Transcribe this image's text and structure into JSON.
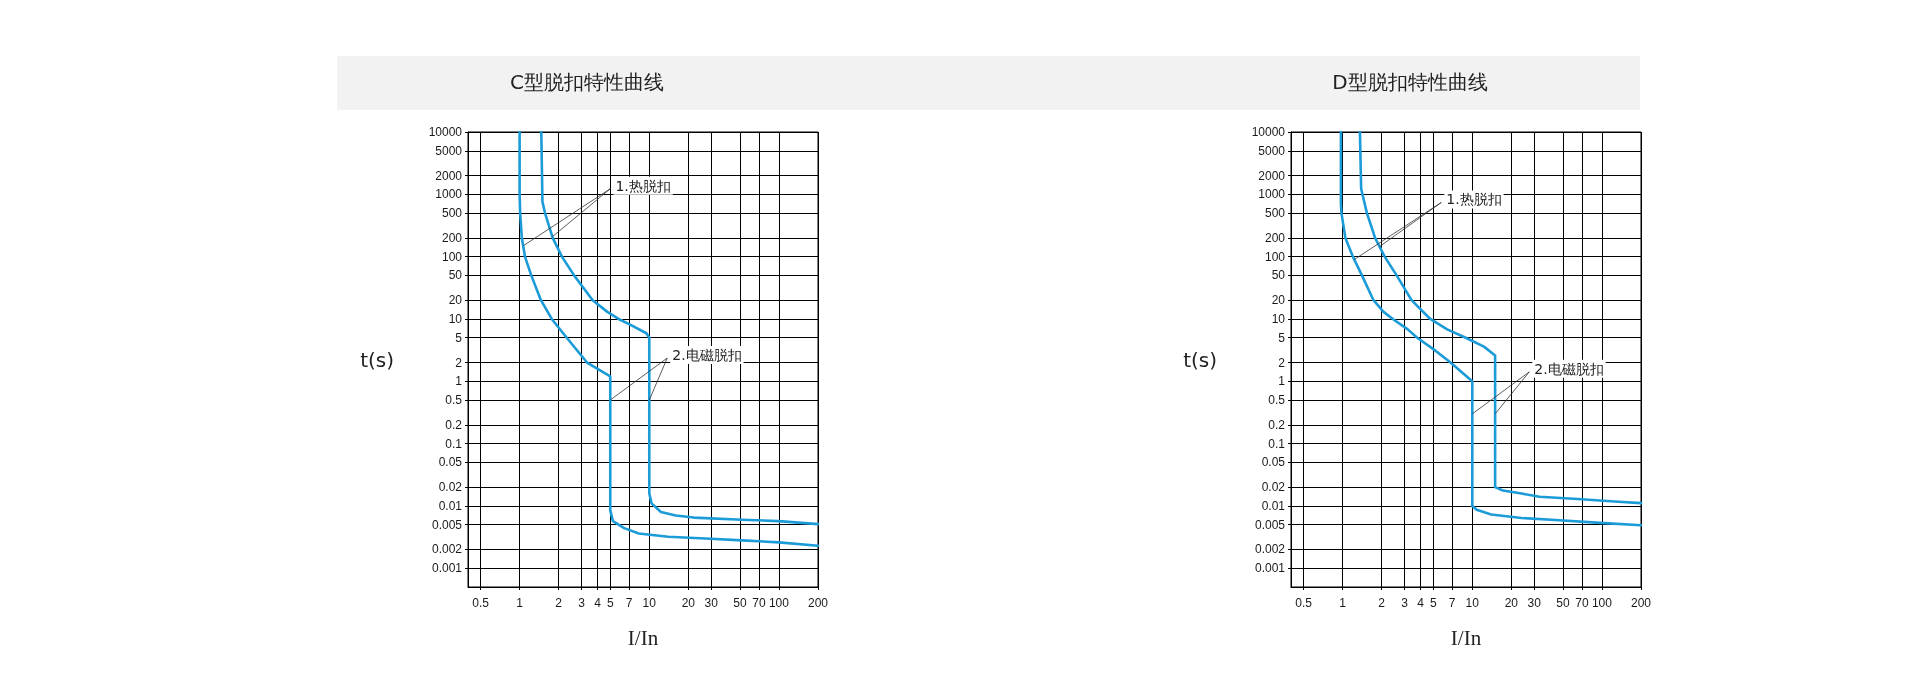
{
  "chart_data": [
    {
      "type": "line",
      "title": "C型脱扣特性曲线",
      "xlabel": "I/In",
      "ylabel": "t(s)",
      "log": "xy",
      "grid": true,
      "xlim": [
        0.4,
        200
      ],
      "ylim": [
        0.0005,
        10000
      ],
      "xticks": [
        0.5,
        1,
        2,
        3,
        4,
        5,
        7,
        10,
        20,
        30,
        50,
        70,
        100,
        200
      ],
      "yticks": [
        0.001,
        0.002,
        0.005,
        0.01,
        0.02,
        0.05,
        0.1,
        0.2,
        0.5,
        1,
        2,
        5,
        10,
        20,
        50,
        100,
        200,
        500,
        1000,
        2000,
        5000,
        10000
      ],
      "series": [
        {
          "color": "#1b9bd7",
          "x": [
            1.0,
            1.0,
            1.01,
            1.04,
            1.1,
            1.23,
            1.46,
            1.77,
            2.31,
            3.31,
            5,
            5,
            5.25,
            6.4,
            8.3,
            14,
            27,
            52,
            100,
            200
          ],
          "values": [
            10000,
            1000,
            500,
            200,
            100,
            50,
            20,
            10,
            5,
            2,
            1.2,
            0.0085,
            0.0057,
            0.0044,
            0.0036,
            0.0032,
            0.003,
            0.0028,
            0.0026,
            0.0023
          ]
        },
        {
          "color": "#1b9bd7",
          "x": [
            1.47,
            1.5,
            1.57,
            1.8,
            2.12,
            2.63,
            3.66,
            4.75,
            5.8,
            7.3,
            9.5,
            10,
            10,
            10.4,
            12.3,
            16,
            22,
            52,
            100,
            200
          ],
          "values": [
            10000,
            760,
            500,
            200,
            100,
            50,
            20,
            13,
            10,
            7.9,
            5.9,
            5,
            0.016,
            0.011,
            0.008,
            0.007,
            0.0065,
            0.006,
            0.0057,
            0.0051
          ]
        }
      ],
      "annotations": [
        {
          "text": "1.热脱扣",
          "x": 1.07,
          "y": 150
        },
        {
          "text": "2.电磁脱扣",
          "x": 5,
          "y": 0.5
        }
      ]
    },
    {
      "type": "line",
      "title": "D型脱扣特性曲线",
      "xlabel": "I/In",
      "ylabel": "t(s)",
      "log": "xy",
      "grid": true,
      "xlim": [
        0.4,
        200
      ],
      "ylim": [
        0.0005,
        10000
      ],
      "xticks": [
        0.5,
        1,
        2,
        3,
        4,
        5,
        7,
        10,
        20,
        30,
        50,
        70,
        100,
        200
      ],
      "yticks": [
        0.001,
        0.002,
        0.005,
        0.01,
        0.02,
        0.05,
        0.1,
        0.2,
        0.5,
        1,
        2,
        5,
        10,
        20,
        50,
        100,
        200,
        500,
        1000,
        2000,
        5000,
        10000
      ],
      "series": [
        {
          "color": "#1b9bd7",
          "x": [
            0.97,
            0.97,
            0.98,
            1.05,
            1.2,
            1.41,
            1.73,
            2.07,
            2.44,
            3.18,
            3.76,
            5.2,
            6.8,
            8.3,
            10,
            10,
            10.8,
            14,
            24,
            47,
            90,
            200
          ],
          "values": [
            10000,
            710,
            500,
            200,
            100,
            50,
            20,
            13,
            10,
            6.8,
            5,
            3.1,
            2,
            1.4,
            1.0,
            0.01,
            0.0087,
            0.0073,
            0.0064,
            0.0059,
            0.0054,
            0.0049
          ]
        },
        {
          "color": "#1b9bd7",
          "x": [
            1.36,
            1.39,
            1.54,
            1.78,
            2.11,
            2.61,
            3.4,
            4.74,
            6.4,
            8.9,
            12.3,
            15,
            15,
            17.2,
            24,
            33,
            65,
            125,
            200
          ],
          "values": [
            10000,
            1230,
            500,
            200,
            100,
            50,
            20,
            10,
            6.8,
            5,
            3.6,
            2.6,
            0.02,
            0.0177,
            0.0158,
            0.014,
            0.0129,
            0.0118,
            0.0111
          ]
        }
      ],
      "annotations": [
        {
          "text": "1.热脱扣",
          "x": 1.23,
          "y": 90
        },
        {
          "text": "2.电磁脱扣",
          "x": 10,
          "y": 0.3
        }
      ]
    }
  ]
}
